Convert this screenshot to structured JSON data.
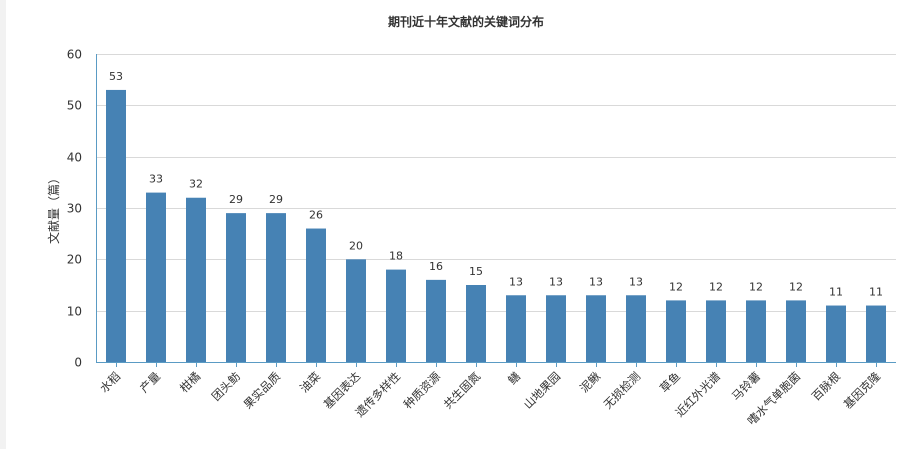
{
  "chart_data": {
    "type": "bar",
    "title": "期刊近十年文献的关键词分布",
    "xlabel": "",
    "ylabel": "文献量（篇）",
    "ylim": [
      0,
      60
    ],
    "yticks": [
      0,
      10,
      20,
      30,
      40,
      50,
      60
    ],
    "grid": true,
    "legend": "none",
    "bar_color": "#4682b4",
    "categories": [
      "水稻",
      "产量",
      "柑橘",
      "团头鲂",
      "果实品质",
      "油菜",
      "基因表达",
      "遗传多样性",
      "种质资源",
      "共生固氮",
      "鳝",
      "山地果园",
      "泥鳅",
      "无损检测",
      "草鱼",
      "近红外光谱",
      "马铃薯",
      "嗜水气单胞菌",
      "百脉根",
      "基因克隆"
    ],
    "values": [
      53,
      33,
      32,
      29,
      29,
      26,
      20,
      18,
      16,
      15,
      13,
      13,
      13,
      13,
      12,
      12,
      12,
      12,
      11,
      11
    ]
  }
}
